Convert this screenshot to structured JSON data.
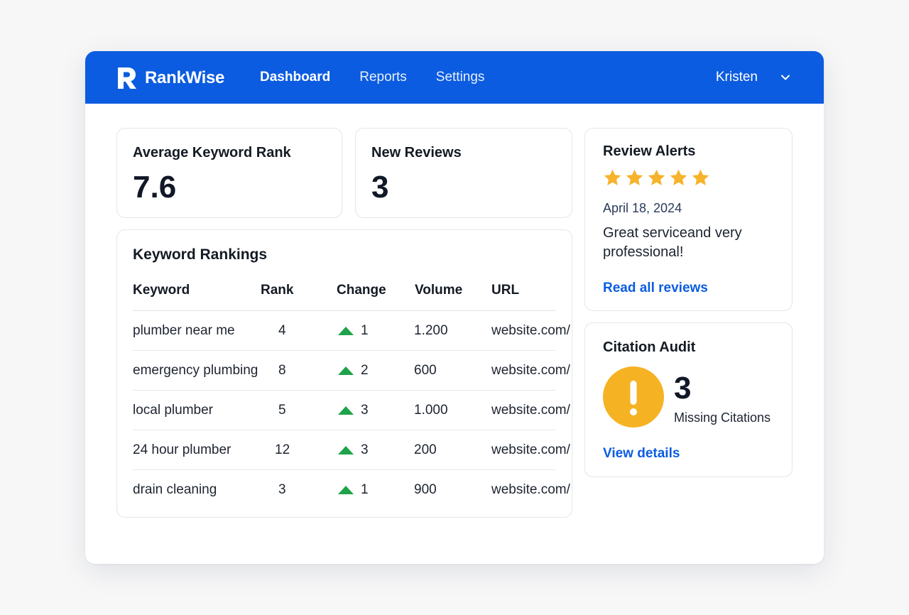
{
  "brand": {
    "name": "RankWise"
  },
  "nav": {
    "items": [
      "Dashboard",
      "Reports",
      "Settings"
    ],
    "active": "Dashboard"
  },
  "user": {
    "name": "Kristen"
  },
  "stats": {
    "avg_rank": {
      "label": "Average Keyword Rank",
      "value": "7.6"
    },
    "new_reviews": {
      "label": "New Reviews",
      "value": "3"
    }
  },
  "rankings": {
    "title": "Keyword Rankings",
    "columns": [
      "Keyword",
      "Rank",
      "Change",
      "Volume",
      "URL"
    ],
    "rows": [
      {
        "keyword": "plumber near me",
        "rank": "4",
        "change": "1",
        "volume": "1.200",
        "url": "website.com/"
      },
      {
        "keyword": "emergency plumbing",
        "rank": "8",
        "change": "2",
        "volume": "600",
        "url": "website.com/"
      },
      {
        "keyword": "local plumber",
        "rank": "5",
        "change": "3",
        "volume": "1.000",
        "url": "website.com/"
      },
      {
        "keyword": "24 hour plumber",
        "rank": "12",
        "change": "3",
        "volume": "200",
        "url": "website.com/"
      },
      {
        "keyword": "drain cleaning",
        "rank": "3",
        "change": "1",
        "volume": "900",
        "url": "website.com/"
      }
    ]
  },
  "review_alerts": {
    "title": "Review Alerts",
    "rating": 5,
    "date": "April 18, 2024",
    "text": "Great serviceand very professional!",
    "link": "Read all reviews"
  },
  "citation_audit": {
    "title": "Citation Audit",
    "count": "3",
    "label": "Missing Citations",
    "link": "View details"
  },
  "colors": {
    "brand_blue": "#0b5ce0",
    "up_green": "#1fa34a",
    "star_gold": "#f7b32b",
    "warning_amber": "#f5b324"
  },
  "icons": {
    "logo": "r-logo-icon",
    "user_menu": "chevron-down-icon",
    "change_up": "arrow-up-icon",
    "rating": "star-icon",
    "citation": "exclamation-icon"
  }
}
